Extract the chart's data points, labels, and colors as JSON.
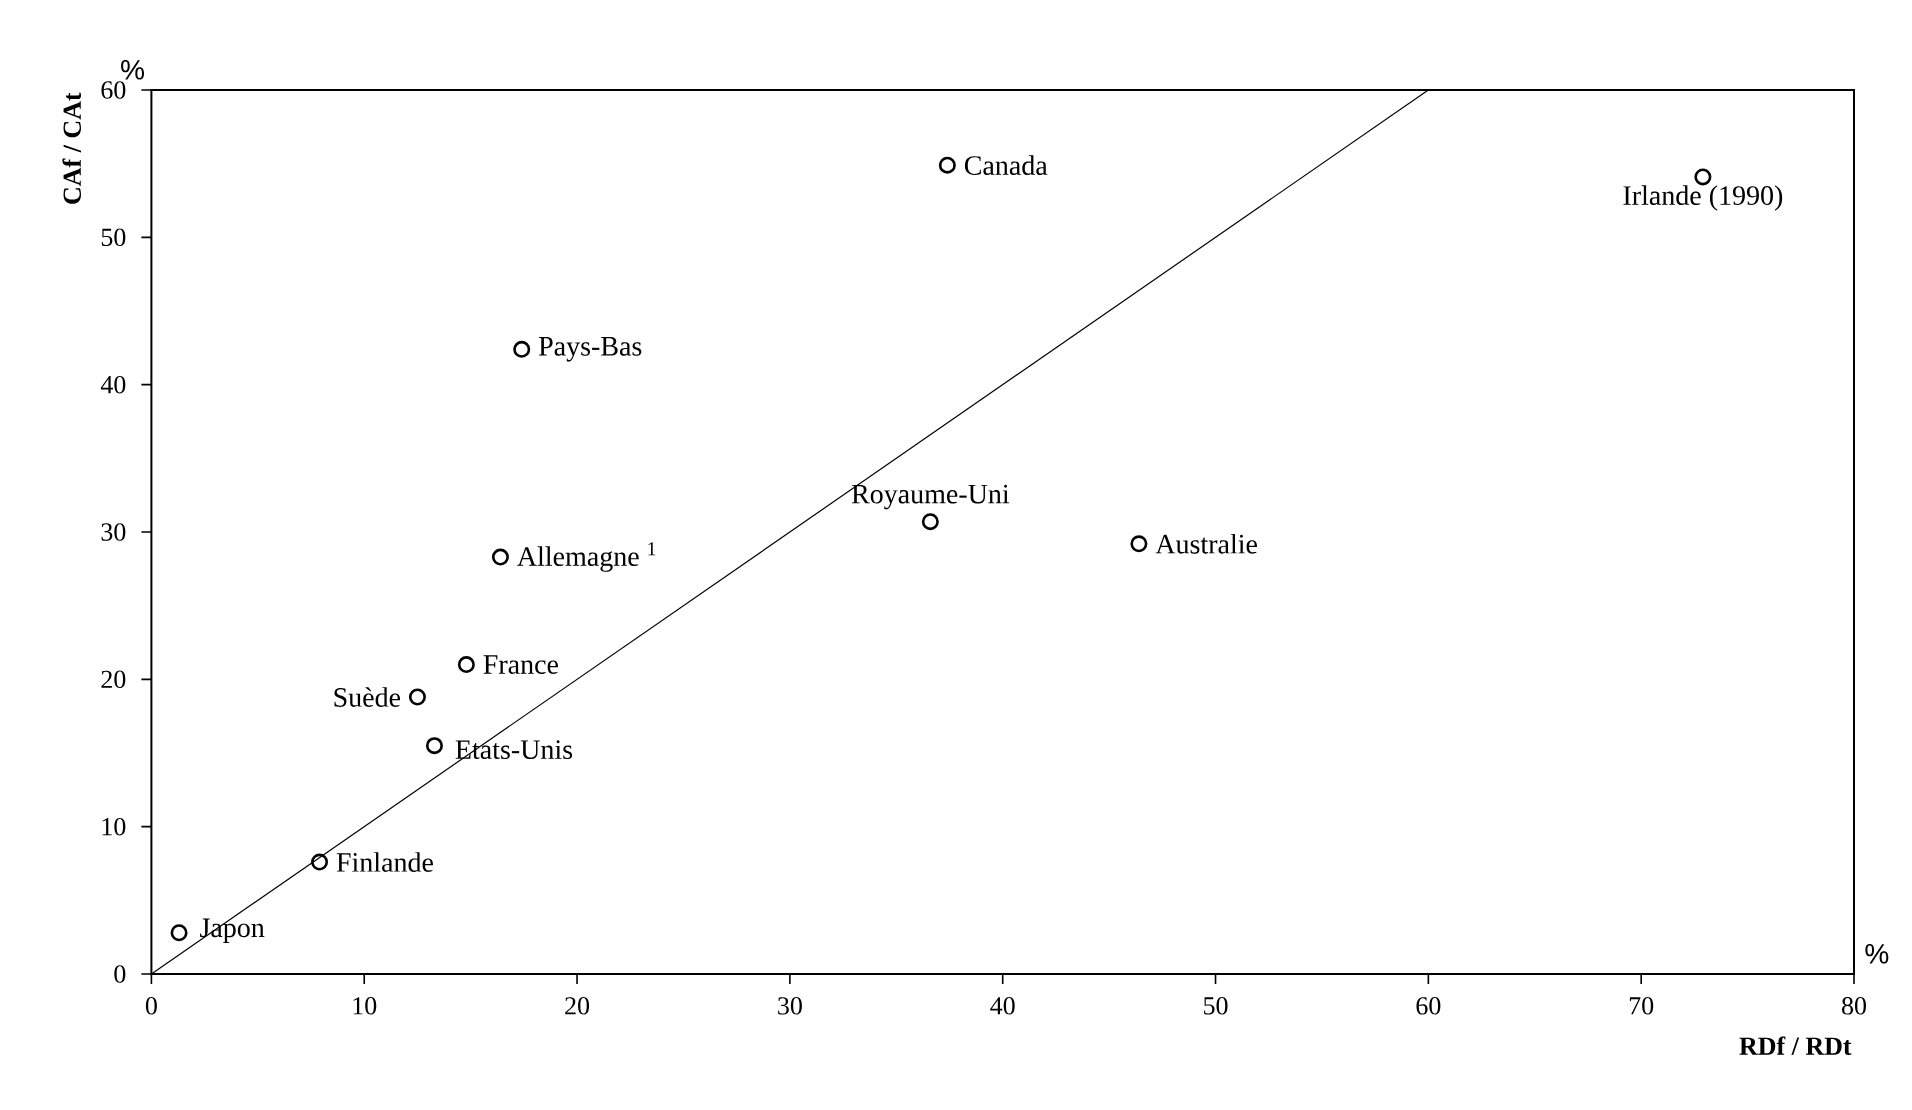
{
  "chart_data": {
    "type": "scatter",
    "xlabel": "RDf / RDt",
    "ylabel": "CAf / CAt",
    "xlim": [
      0,
      80
    ],
    "xticks": [
      0,
      10,
      20,
      30,
      40,
      50,
      60,
      70,
      80
    ],
    "ylim": [
      0,
      60
    ],
    "yticks": [
      0,
      10,
      20,
      30,
      40,
      50,
      60
    ],
    "marker": "circle",
    "series": [
      {
        "color": "#000000",
        "x": [
          1.3,
          7.9,
          12.5,
          14.8,
          13.3,
          37.4,
          17.4,
          16.4,
          36.6,
          46.4,
          72.9
        ],
        "values": [
          2.8,
          7.6,
          18.8,
          21.0,
          15.5,
          54.9,
          42.4,
          28.3,
          30.7,
          29.2,
          54.1
        ]
      },
      {
        "type": "line",
        "color": "#000000",
        "marker": "none",
        "x": [
          0,
          60
        ],
        "values": [
          0,
          60
        ]
      }
    ],
    "annotations": [
      {
        "text": "Japon",
        "x": 1.3,
        "y": 2.8
      },
      {
        "text": "Finlande",
        "x": 7.9,
        "y": 7.6
      },
      {
        "text": "Suède",
        "x": 12.5,
        "y": 18.8
      },
      {
        "text": "France",
        "x": 14.8,
        "y": 21.0
      },
      {
        "text": "Etats-Unis",
        "x": 13.3,
        "y": 15.5
      },
      {
        "text": "Canada",
        "x": 37.4,
        "y": 54.9
      },
      {
        "text": "Pays-Bas",
        "x": 17.4,
        "y": 42.4
      },
      {
        "text": "Allemagne $^{1}$",
        "x": 16.4,
        "y": 28.3
      },
      {
        "text": "Royaume-Uni",
        "x": 36.6,
        "y": 30.7
      },
      {
        "text": "Australie",
        "x": 46.4,
        "y": 29.2
      },
      {
        "text": "Irlande (1990)",
        "x": 72.9,
        "y": 54.1
      },
      "%",
      "%"
    ]
  }
}
